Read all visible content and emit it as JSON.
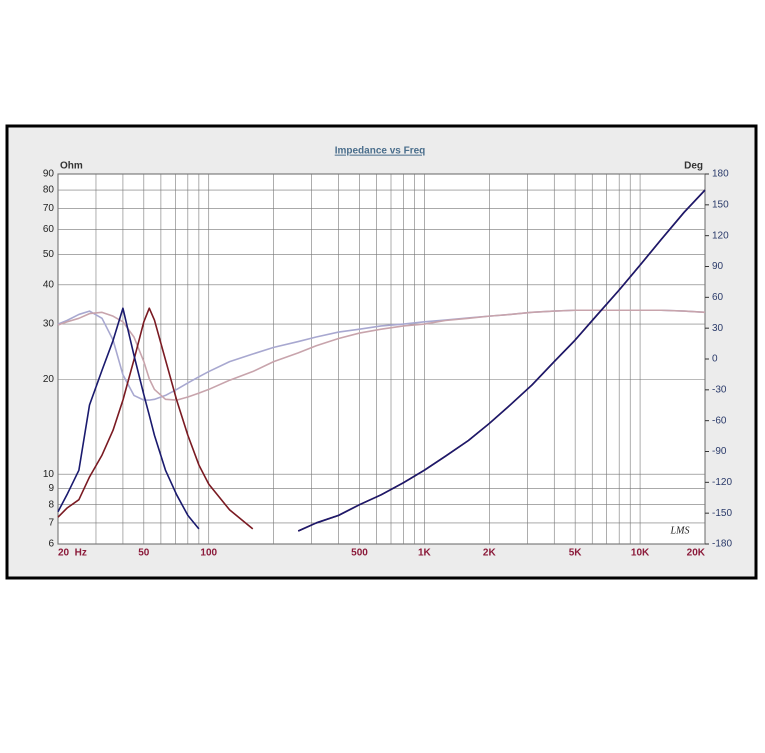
{
  "chart_data": {
    "type": "line",
    "title": "Impedance vs Freq",
    "y_label": "Ohm",
    "y2_label": "Deg",
    "annotation": "LMS",
    "log_x": true,
    "log_y": true,
    "grid": true,
    "x": [
      20,
      22,
      25,
      28,
      32,
      36,
      40,
      45,
      50,
      53,
      56,
      63,
      71,
      80,
      90,
      100,
      125,
      160,
      200,
      260,
      315,
      400,
      500,
      630,
      800,
      1000,
      1250,
      1600,
      2000,
      2500,
      3150,
      4000,
      5000,
      6300,
      8000,
      10000,
      12500,
      16000,
      20000
    ],
    "xlim": [
      20,
      20000
    ],
    "xticks": [
      {
        "value": 20,
        "label": "20  Hz"
      },
      50,
      100,
      500,
      {
        "value": 1000,
        "label": "1K"
      },
      {
        "value": 2000,
        "label": "2K"
      },
      {
        "value": 5000,
        "label": "5K"
      },
      {
        "value": 10000,
        "label": "10K"
      },
      {
        "value": 20000,
        "label": "20K"
      }
    ],
    "xgrid": [
      20,
      30,
      40,
      50,
      60,
      70,
      80,
      90,
      100,
      200,
      300,
      400,
      500,
      600,
      700,
      800,
      900,
      1000,
      2000,
      3000,
      4000,
      5000,
      6000,
      7000,
      8000,
      9000,
      10000,
      20000
    ],
    "ylim": [
      6,
      90
    ],
    "yticks": [
      6,
      7,
      8,
      9,
      10,
      20,
      30,
      40,
      50,
      60,
      70,
      80,
      90
    ],
    "y2lim": [
      -180,
      180
    ],
    "y2ticks": [
      -180,
      -150,
      -120,
      -90,
      -60,
      -30,
      0,
      30,
      60,
      90,
      120,
      150,
      180
    ],
    "series": [
      {
        "color": "#a8a8d0",
        "values": [
          30.0,
          30.8,
          32.2,
          33.0,
          31.3,
          26.7,
          20.7,
          17.8,
          17.2,
          17.2,
          17.3,
          17.8,
          18.6,
          19.5,
          20.4,
          21.2,
          22.8,
          24.1,
          25.3,
          26.4,
          27.3,
          28.3,
          28.9,
          29.6,
          30.0,
          30.5,
          30.9,
          31.4,
          31.8,
          32.2,
          32.7,
          33.0,
          33.2,
          33.2,
          33.2,
          33.2,
          33.2,
          33.0,
          32.7
        ]
      },
      {
        "color": "#c8a4ac",
        "values": [
          29.8,
          30.5,
          31.3,
          32.4,
          32.7,
          31.8,
          30.5,
          27.3,
          22.8,
          20.1,
          18.6,
          17.3,
          17.2,
          17.6,
          18.1,
          18.6,
          19.9,
          21.2,
          22.8,
          24.3,
          25.6,
          27.0,
          28.1,
          28.9,
          29.6,
          30.0,
          30.8,
          31.3,
          31.8,
          32.2,
          32.7,
          33.0,
          33.2,
          33.2,
          33.2,
          33.2,
          33.2,
          33.0,
          32.7
        ]
      },
      {
        "color": "#7a1a22",
        "values": [
          7.3,
          7.8,
          8.3,
          9.8,
          11.5,
          13.8,
          17.2,
          23.1,
          30.5,
          33.7,
          30.9,
          23.1,
          17.2,
          13.3,
          10.7,
          9.3,
          7.7,
          6.7,
          null,
          6.6,
          7.0,
          7.4,
          8.0,
          8.6,
          9.4,
          10.3,
          11.4,
          12.8,
          14.5,
          16.6,
          19.2,
          22.8,
          26.7,
          32,
          38.5,
          46.2,
          55.6,
          68,
          80
        ]
      },
      {
        "color": "#1a1a6e",
        "values": [
          7.6,
          8.6,
          10.3,
          16.6,
          21.4,
          26.6,
          33.7,
          23.9,
          17.9,
          15.4,
          13.3,
          10.3,
          8.6,
          7.4,
          6.7,
          null,
          null,
          null,
          null,
          6.6,
          7.0,
          7.4,
          8.0,
          8.6,
          9.4,
          10.3,
          11.4,
          12.8,
          14.5,
          16.6,
          19.2,
          22.8,
          26.7,
          32,
          38.5,
          46.2,
          55.6,
          68,
          80
        ]
      }
    ]
  }
}
